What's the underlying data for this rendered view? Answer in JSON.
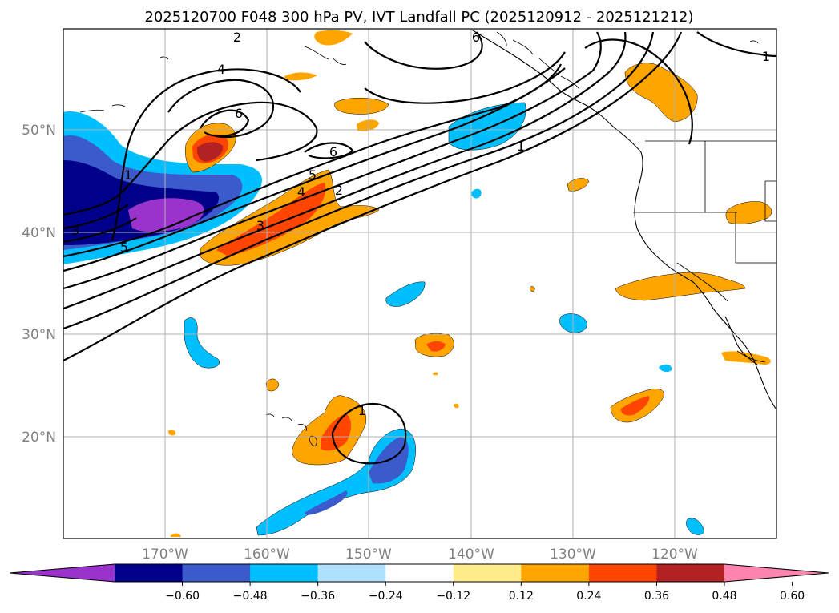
{
  "title": "2025120700 F048 300 hPa PV, IVT Landfall PC (2025120912 - 2025121212)",
  "longitude_labels": [
    "170°W",
    "160°W",
    "150°W",
    "140°W",
    "130°W",
    "120°W"
  ],
  "latitude_labels": [
    "20°N",
    "30°N",
    "40°N",
    "50°N"
  ],
  "contour_labels": [
    "6",
    "6",
    "6",
    "4",
    "2",
    "1",
    "1",
    "5",
    "4",
    "3",
    "2",
    "1",
    "3",
    "5",
    "1"
  ],
  "colorbar": {
    "ticks": [
      "−0.60",
      "−0.48",
      "−0.36",
      "−0.24",
      "−0.12",
      "0.12",
      "0.24",
      "0.36",
      "0.48",
      "0.60"
    ],
    "colors": [
      "#9933cc",
      "#00008b",
      "#3b5bcc",
      "#00bfff",
      "#b0e0ff",
      "#ffffff",
      "#ffeb8a",
      "#ffa500",
      "#ff4500",
      "#b22222",
      "#ff85b0"
    ]
  },
  "colors": {
    "purple": "#9933cc",
    "navy": "#00008b",
    "blue": "#3b5bcc",
    "cyan": "#00bfff",
    "lightblue": "#b0e0ff",
    "yellow": "#ffeb8a",
    "orange": "#ffa500",
    "redorange": "#ff4500",
    "firebrick": "#b22222",
    "pink": "#ff85b0",
    "grid": "#b0b0b0",
    "axis_label": "#808080"
  }
}
